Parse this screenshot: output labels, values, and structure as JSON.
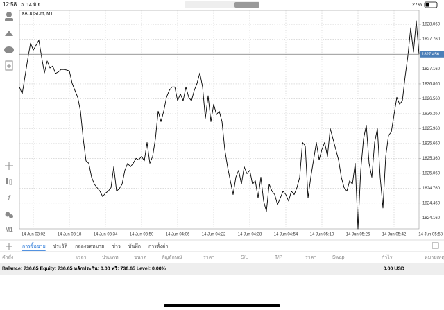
{
  "status_bar": {
    "time": "12:58",
    "date": "อ. 14 มิ.ย.",
    "battery": "27%"
  },
  "toolbar": {
    "timeframe": "M1"
  },
  "chart_data": {
    "type": "line",
    "title": "XAUUSDm, M1",
    "grid": true,
    "categories": [
      null,
      null,
      null,
      null,
      null,
      "14 Jun 03:02",
      null,
      null,
      null,
      null,
      null,
      null,
      null,
      null,
      null,
      null,
      null,
      null,
      "14 Jun 03:18",
      null,
      null,
      null,
      null,
      null,
      null,
      null,
      null,
      null,
      null,
      null,
      null,
      "14 Jun 03:34",
      null,
      null,
      null,
      null,
      null,
      null,
      null,
      null,
      null,
      null,
      null,
      null,
      "14 Jun 03:50",
      null,
      null,
      null,
      null,
      null,
      null,
      null,
      null,
      null,
      null,
      null,
      null,
      "14 Jun 04:06",
      null,
      null,
      null,
      null,
      null,
      null,
      null,
      null,
      null,
      null,
      null,
      null,
      "14 Jun 04:22",
      null,
      null,
      null,
      null,
      null,
      null,
      null,
      null,
      null,
      null,
      null,
      null,
      "14 Jun 04:38",
      null,
      null,
      null,
      null,
      null,
      null,
      null,
      null,
      null,
      null,
      null,
      null,
      "14 Jun 04:54",
      null,
      null,
      null,
      null,
      null,
      null,
      null,
      null,
      null,
      null,
      null,
      null,
      "14 Jun 05:10",
      null,
      null,
      null,
      null,
      null,
      null,
      null,
      null,
      null,
      null,
      null,
      null,
      "14 Jun 05:26",
      null,
      null,
      null,
      null,
      null,
      null,
      null,
      null,
      null,
      null,
      null,
      null,
      "14 Jun 05:42",
      null,
      null,
      null,
      null,
      null,
      null,
      null,
      null,
      null,
      null,
      null,
      null,
      "14 Jun 05:58"
    ],
    "series": [
      {
        "color": "#000000",
        "values": [
          1826.8,
          1826.66,
          1827.01,
          1827.36,
          1827.68,
          1827.54,
          1827.64,
          1827.74,
          1827.4,
          1827.08,
          1827.32,
          1827.18,
          1827.22,
          1827.07,
          1827.1,
          1827.15,
          1827.15,
          1827.14,
          1827.12,
          1826.87,
          1826.73,
          1826.59,
          1826.31,
          1825.75,
          1825.31,
          1825.26,
          1824.98,
          1824.84,
          1824.77,
          1824.7,
          1824.59,
          1824.66,
          1824.7,
          1824.77,
          1825.19,
          1824.7,
          1824.75,
          1824.84,
          1825.12,
          1825.26,
          1825.19,
          1825.26,
          1825.36,
          1825.33,
          1825.4,
          1825.31,
          1825.68,
          1825.26,
          1825.4,
          1825.75,
          1826.31,
          1826.1,
          1826.31,
          1826.59,
          1826.73,
          1826.8,
          1826.8,
          1826.52,
          1826.66,
          1826.52,
          1826.8,
          1826.59,
          1826.52,
          1826.73,
          1826.87,
          1827.08,
          1826.8,
          1826.17,
          1826.62,
          1826.1,
          1826.45,
          1826.24,
          1826.31,
          1826.1,
          1825.54,
          1825.19,
          1824.91,
          1824.63,
          1824.98,
          1825.12,
          1824.84,
          1825.19,
          1825.05,
          1825.12,
          1824.84,
          1824.91,
          1824.56,
          1824.98,
          1824.5,
          1824.29,
          1824.84,
          1824.7,
          1824.63,
          1824.43,
          1824.56,
          1824.7,
          1824.63,
          1824.5,
          1824.7,
          1824.63,
          1824.77,
          1824.98,
          1825.68,
          1825.61,
          1824.56,
          1824.98,
          1825.33,
          1825.68,
          1825.33,
          1825.54,
          1825.68,
          1825.4,
          1825.96,
          1825.75,
          1825.54,
          1825.33,
          1824.98,
          1824.77,
          1824.7,
          1824.91,
          1824.84,
          1825.26,
          1823.94,
          1825.12,
          1825.75,
          1826.03,
          1825.26,
          1824.98,
          1825.68,
          1825.96,
          1824.98,
          1824.36,
          1825.4,
          1825.82,
          1825.89,
          1826.24,
          1826.59,
          1826.45,
          1826.52,
          1827.01,
          1827.43,
          1827.99,
          1827.5,
          1828.13,
          1827.456,
          null,
          null,
          null,
          null
        ]
      }
    ],
    "ylim": [
      1823.94,
      1828.34
    ],
    "yticks": [
      {
        "value": 1828.06,
        "label": "1828.060"
      },
      {
        "value": 1827.76,
        "label": "1827.760"
      },
      {
        "value": 1827.16,
        "label": "1827.160"
      },
      {
        "value": 1826.86,
        "label": "1826.860"
      },
      {
        "value": 1826.56,
        "label": "1826.560"
      },
      {
        "value": 1826.26,
        "label": "1826.260"
      },
      {
        "value": 1825.96,
        "label": "1825.960"
      },
      {
        "value": 1825.66,
        "label": "1825.660"
      },
      {
        "value": 1825.36,
        "label": "1825.360"
      },
      {
        "value": 1825.06,
        "label": "1825.060"
      },
      {
        "value": 1824.76,
        "label": "1824.760"
      },
      {
        "value": 1824.46,
        "label": "1824.460"
      },
      {
        "value": 1824.16,
        "label": "1824.160"
      }
    ],
    "current_price": {
      "value": 1827.456,
      "label": "1827.456"
    }
  },
  "tabs": [
    "การซื้อขาย",
    "ประวัติ",
    "กล่องจดหมาย",
    "ข่าว",
    "บันทึก",
    "การตั้งค่า"
  ],
  "table_header": [
    "คำสั่ง",
    "เวลา",
    "ประเภท",
    "ขนาด",
    "สัญลักษณ์",
    "ราคา",
    "S/L",
    "T/P",
    "ราคา",
    "Swap",
    "กำไร",
    "หมายเหตุ"
  ],
  "account": {
    "summary": "Balance: 736.65 Equity: 736.65 หลักประกัน: 0.00 ฟรี: 736.65 Level: 0.00%",
    "profit": "0.00  USD"
  }
}
